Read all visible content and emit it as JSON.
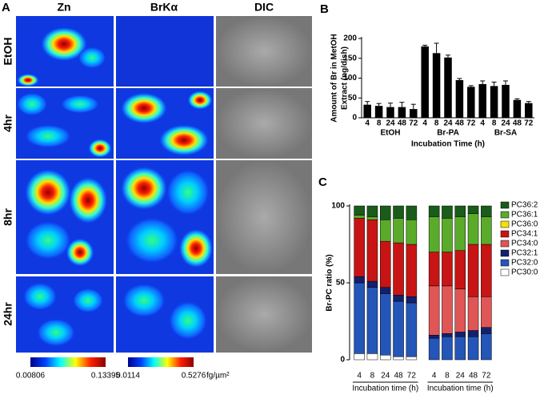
{
  "panel_a": {
    "label": "A",
    "columns": [
      "Zn",
      "BrKα",
      "DIC"
    ],
    "rows": [
      "EtOH",
      "4hr",
      "8hr",
      "24hr"
    ],
    "colorbars": [
      {
        "min": "0.00806",
        "max": "0.13395"
      },
      {
        "min": "0.0114",
        "max": "0.5276"
      }
    ],
    "unit": "fg/µm²"
  },
  "chart_data": [
    {
      "type": "bar",
      "panel_label": "B",
      "ylabel": [
        "Amount of Br in MetOH",
        "Extract (ng/dish)"
      ],
      "xlabel": "Incubation Time (h)",
      "categories": [
        "4",
        "8",
        "24",
        "48",
        "72",
        "4",
        "8",
        "24",
        "48",
        "72",
        "4",
        "8",
        "24",
        "48",
        "72"
      ],
      "groups": [
        "EtOH",
        "Br-PA",
        "Br-SA"
      ],
      "values": [
        33,
        30,
        27,
        27,
        22,
        180,
        163,
        152,
        95,
        78,
        85,
        80,
        83,
        45,
        37
      ],
      "errors": [
        8,
        6,
        10,
        12,
        12,
        3,
        25,
        6,
        4,
        3,
        8,
        10,
        10,
        3,
        4
      ],
      "color": "#000000",
      "ylim": [
        0,
        200
      ],
      "yticks": [
        0,
        50,
        100,
        150,
        200
      ]
    },
    {
      "type": "stacked_bar",
      "panel_label": "C",
      "ylabel": "Br-PC ratio (%)",
      "categories": [
        "4",
        "8",
        "24",
        "48",
        "72",
        "4",
        "8",
        "24",
        "48",
        "72"
      ],
      "groups": [
        "Incubation time (h)",
        "Incubation time (h)"
      ],
      "ylim": [
        0,
        100
      ],
      "yticks": [
        0,
        50,
        100
      ],
      "series": [
        {
          "name": "PC30:0",
          "color": "#ffffff",
          "values": [
            4,
            4,
            3,
            2,
            2,
            0,
            0,
            0,
            0,
            0
          ]
        },
        {
          "name": "PC32:0",
          "color": "#2455b8",
          "values": [
            46,
            43,
            40,
            36,
            35,
            14,
            15,
            15,
            15,
            17
          ]
        },
        {
          "name": "PC32:1",
          "color": "#14206e",
          "values": [
            4,
            4,
            4,
            4,
            4,
            2,
            2,
            3,
            4,
            4
          ]
        },
        {
          "name": "PC34:0",
          "color": "#e05555",
          "values": [
            0,
            0,
            0,
            0,
            0,
            32,
            31,
            28,
            22,
            20
          ]
        },
        {
          "name": "PC34:1",
          "color": "#c81414",
          "values": [
            38,
            40,
            30,
            34,
            34,
            22,
            22,
            25,
            34,
            34
          ]
        },
        {
          "name": "PC36:0",
          "color": "#f2e200",
          "values": [
            0,
            0,
            0,
            0,
            0,
            0,
            0,
            0,
            0,
            0
          ]
        },
        {
          "name": "PC36:1",
          "color": "#5aab2a",
          "values": [
            2,
            2,
            14,
            16,
            16,
            23,
            22,
            22,
            20,
            18
          ]
        },
        {
          "name": "PC36:2",
          "color": "#1a5c1a",
          "values": [
            6,
            7,
            9,
            8,
            9,
            7,
            8,
            7,
            5,
            7
          ]
        }
      ]
    }
  ]
}
